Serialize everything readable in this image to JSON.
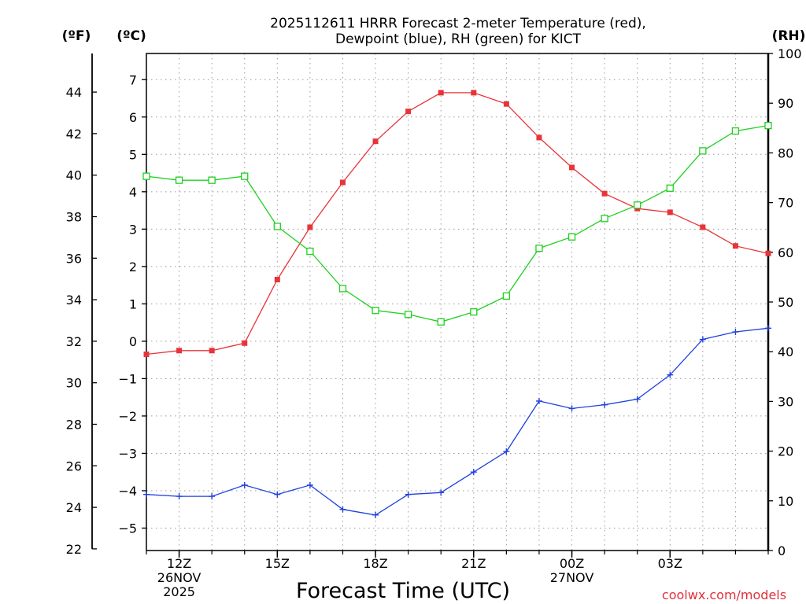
{
  "chart_data": {
    "type": "line",
    "title_line1": "2025112611 HRRR Forecast 2-meter Temperature (red),",
    "title_line2": "Dewpoint (blue), RH (green) for KICT",
    "xlabel": "Forecast Time (UTC)",
    "credit": "coolwx.com/models",
    "units": {
      "fahrenheit": "(ºF)",
      "celsius": "(ºC)",
      "rh": "(RH)"
    },
    "x_hours": [
      11,
      12,
      13,
      14,
      15,
      16,
      17,
      18,
      19,
      20,
      21,
      22,
      23,
      24,
      25,
      26,
      27,
      28,
      29,
      30
    ],
    "x_range": [
      11,
      30
    ],
    "x_ticks": [
      {
        "hour": 12,
        "lines": [
          "12Z",
          "26NOV",
          "2025"
        ]
      },
      {
        "hour": 15,
        "lines": [
          "15Z"
        ]
      },
      {
        "hour": 18,
        "lines": [
          "18Z"
        ]
      },
      {
        "hour": 21,
        "lines": [
          "21Z"
        ]
      },
      {
        "hour": 24,
        "lines": [
          "00Z",
          "27NOV"
        ]
      },
      {
        "hour": 27,
        "lines": [
          "03Z"
        ]
      }
    ],
    "celsius_axis": {
      "range": [
        -5.6,
        7.7
      ],
      "ticks": [
        -5,
        -4,
        -3,
        -2,
        -1,
        0,
        1,
        2,
        3,
        4,
        5,
        6,
        7
      ],
      "tick_labels": [
        "−5",
        "−4",
        "−3",
        "−2",
        "−1",
        "0",
        "1",
        "2",
        "3",
        "4",
        "5",
        "6",
        "7"
      ]
    },
    "fahrenheit_axis": {
      "ticks": [
        22,
        24,
        26,
        28,
        30,
        32,
        34,
        36,
        38,
        40,
        42,
        44
      ]
    },
    "rh_axis": {
      "range": [
        0,
        100
      ],
      "ticks": [
        0,
        10,
        20,
        30,
        40,
        50,
        60,
        70,
        80,
        90,
        100
      ]
    },
    "series": [
      {
        "name": "2-meter Temperature",
        "color": "#e8333a",
        "marker": "filled-square",
        "axis": "celsius",
        "values": [
          -0.35,
          -0.25,
          -0.25,
          -0.05,
          1.65,
          3.05,
          4.25,
          5.35,
          6.15,
          6.65,
          6.65,
          6.35,
          5.45,
          4.65,
          3.95,
          3.55,
          3.45,
          3.05,
          2.55,
          2.35
        ]
      },
      {
        "name": "Dewpoint",
        "color": "#2040e0",
        "marker": "plus",
        "axis": "celsius",
        "values": [
          -4.1,
          -4.15,
          -4.15,
          -3.85,
          -4.1,
          -3.85,
          -4.5,
          -4.65,
          -4.1,
          -4.05,
          -3.5,
          -2.95,
          -1.6,
          -1.8,
          -1.7,
          -1.55,
          -0.9,
          0.05,
          0.25,
          0.35
        ]
      },
      {
        "name": "RH",
        "color": "#20d020",
        "marker": "open-square",
        "axis": "rh",
        "values": [
          75.3,
          74.5,
          74.5,
          75.3,
          65.2,
          60.2,
          52.7,
          48.3,
          47.5,
          46.0,
          48.0,
          51.2,
          60.8,
          63.1,
          66.8,
          69.5,
          72.9,
          80.4,
          84.4,
          85.5
        ]
      }
    ]
  }
}
